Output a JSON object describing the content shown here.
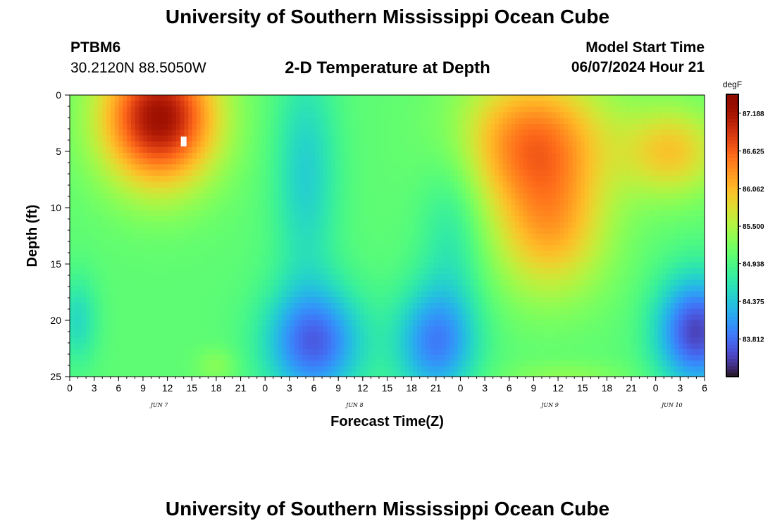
{
  "header": {
    "title": "University of Southern Mississippi Ocean Cube",
    "station_id": "PTBM6",
    "station_location": "30.2120N  88.5050W",
    "subtitle": "2-D Temperature at Depth",
    "start_label": "Model Start Time",
    "start_value": "06/07/2024 Hour 21"
  },
  "footer": {
    "title": "University of Southern Mississippi Ocean Cube"
  },
  "chart_data": {
    "type": "heatmap",
    "title": "2-D Temperature at Depth",
    "xlabel": "Forecast Time(Z)",
    "ylabel": "Depth (ft)",
    "x_start_hour": 0,
    "x_end_hour": 78,
    "x_ticks": [
      "0",
      "3",
      "6",
      "9",
      "12",
      "15",
      "18",
      "21",
      "0",
      "3",
      "6",
      "9",
      "12",
      "15",
      "18",
      "21",
      "0",
      "3",
      "6",
      "9",
      "12",
      "15",
      "18",
      "21",
      "0",
      "3",
      "6"
    ],
    "x_date_labels": [
      "JUN 7",
      "JUN 8",
      "JUN 9",
      "JUN 10"
    ],
    "x_date_hours": [
      11,
      35,
      59,
      74
    ],
    "y_ticks": [
      "0",
      "5",
      "10",
      "15",
      "20",
      "25"
    ],
    "ylim": [
      0,
      25
    ],
    "y_inverted": true,
    "colorbar": {
      "unit": "degF",
      "labels": [
        "87.188",
        "86.625",
        "86.062",
        "85.500",
        "84.938",
        "84.375",
        "83.812"
      ],
      "min": 83.25,
      "max": 87.47,
      "colormap": "turbo"
    },
    "missing_value_marker": {
      "hour": 14,
      "depth": 4
    }
  }
}
